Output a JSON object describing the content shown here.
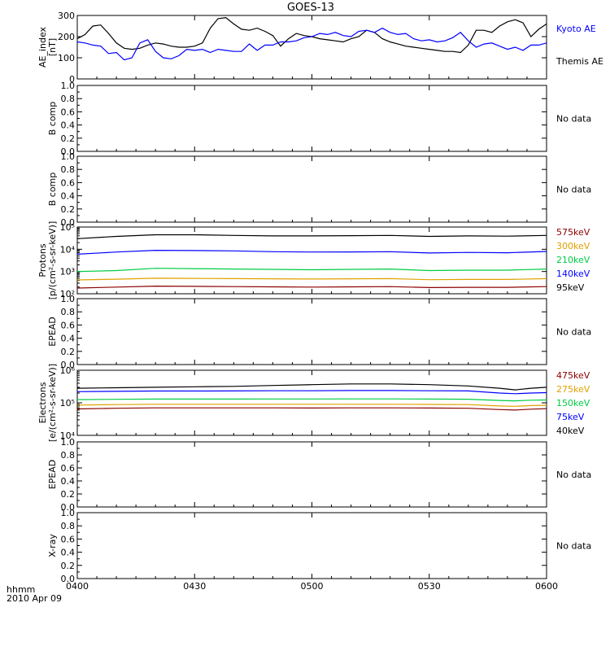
{
  "title": "GOES-13",
  "footer": {
    "line1": "hhmm",
    "line2": "2010 Apr 09"
  },
  "x_ticks": [
    "0400",
    "0430",
    "0500",
    "0530",
    "0600"
  ],
  "chart_data": [
    {
      "type": "line",
      "panel": "ae",
      "ylabel": "AE_index",
      "ylabel2": "[nT]",
      "ylim": [
        0,
        300
      ],
      "yticks": [
        0,
        100,
        200,
        300
      ],
      "x_range_minutes": [
        0,
        120
      ],
      "legend": [
        {
          "text": "Kyoto AE",
          "color": "#0000ff"
        },
        {
          "text": "Themis AE",
          "color": "#000000"
        }
      ],
      "series": [
        {
          "name": "Themis AE",
          "color": "#000000",
          "x": [
            0,
            2,
            4,
            6,
            8,
            10,
            12,
            14,
            16,
            18,
            20,
            22,
            24,
            26,
            28,
            30,
            32,
            34,
            36,
            38,
            40,
            42,
            44,
            46,
            48,
            50,
            52,
            54,
            56,
            58,
            60,
            62,
            64,
            66,
            68,
            70,
            72,
            74,
            76,
            78,
            80,
            82,
            84,
            86,
            88,
            90,
            92,
            94,
            96,
            98,
            100,
            102,
            104,
            106,
            108,
            110,
            112,
            114,
            116,
            118,
            120
          ],
          "values": [
            190,
            210,
            250,
            255,
            215,
            170,
            145,
            140,
            145,
            160,
            170,
            165,
            155,
            150,
            150,
            155,
            170,
            240,
            285,
            290,
            260,
            235,
            230,
            240,
            225,
            205,
            155,
            190,
            215,
            205,
            200,
            190,
            185,
            180,
            175,
            190,
            200,
            230,
            220,
            190,
            175,
            165,
            155,
            150,
            145,
            140,
            135,
            130,
            130,
            125,
            160,
            230,
            230,
            220,
            250,
            270,
            280,
            265,
            200,
            235,
            260
          ]
        },
        {
          "name": "Kyoto AE",
          "color": "#0000ff",
          "x": [
            0,
            2,
            4,
            6,
            8,
            10,
            12,
            14,
            16,
            18,
            20,
            22,
            24,
            26,
            28,
            30,
            32,
            34,
            36,
            38,
            40,
            42,
            44,
            46,
            48,
            50,
            52,
            54,
            56,
            58,
            60,
            62,
            64,
            66,
            68,
            70,
            72,
            74,
            76,
            78,
            80,
            82,
            84,
            86,
            88,
            90,
            92,
            94,
            96,
            98,
            100,
            102,
            104,
            106,
            108,
            110,
            112,
            114,
            116,
            118,
            120
          ],
          "values": [
            175,
            170,
            160,
            155,
            120,
            125,
            90,
            100,
            170,
            185,
            130,
            100,
            95,
            110,
            140,
            135,
            140,
            125,
            140,
            135,
            130,
            130,
            165,
            135,
            160,
            160,
            175,
            175,
            180,
            195,
            200,
            215,
            210,
            220,
            205,
            200,
            225,
            230,
            220,
            240,
            220,
            210,
            215,
            190,
            180,
            185,
            175,
            180,
            195,
            220,
            180,
            150,
            165,
            170,
            155,
            140,
            150,
            135,
            160,
            160,
            170
          ]
        }
      ]
    },
    {
      "type": "line",
      "panel": "empty",
      "ylabel": "B comp",
      "ylim": [
        0,
        1
      ],
      "yticks": [
        "0.0",
        "0.2",
        "0.4",
        "0.6",
        "0.8",
        "1.0"
      ],
      "note": "No data"
    },
    {
      "type": "line",
      "panel": "empty",
      "ylabel": "B comp",
      "ylim": [
        0,
        1
      ],
      "yticks": [
        "0.0",
        "0.2",
        "0.4",
        "0.6",
        "0.8",
        "1.0"
      ],
      "note": "No data"
    },
    {
      "type": "line",
      "panel": "protons",
      "ylabel": "Protons",
      "ylabel2": "[p/(cm²-s-sr-keV)]",
      "scale": "log",
      "ylim": [
        100,
        100000
      ],
      "yticks": [
        100,
        1000,
        10000,
        100000
      ],
      "ytick_labels": [
        "10²",
        "10³",
        "10⁴",
        "10⁵"
      ],
      "x_range_minutes": [
        0,
        120
      ],
      "legend": [
        {
          "text": "575keV",
          "color": "#8b0000"
        },
        {
          "text": "300keV",
          "color": "#e0a000"
        },
        {
          "text": "210keV",
          "color": "#00cc44"
        },
        {
          "text": "140keV",
          "color": "#0000ff"
        },
        {
          "text": "95keV",
          "color": "#000000"
        }
      ],
      "series": [
        {
          "name": "95keV",
          "color": "#000000",
          "x": [
            0,
            10,
            20,
            30,
            40,
            50,
            60,
            70,
            80,
            90,
            100,
            110,
            120
          ],
          "values": [
            30000,
            38000,
            45000,
            45000,
            42000,
            40000,
            40000,
            41000,
            42000,
            38000,
            40000,
            39000,
            42000
          ]
        },
        {
          "name": "140keV",
          "color": "#0000ff",
          "x": [
            0,
            10,
            20,
            30,
            40,
            50,
            60,
            70,
            80,
            90,
            100,
            110,
            120
          ],
          "values": [
            6000,
            7500,
            9000,
            8800,
            8500,
            7800,
            7500,
            7600,
            7800,
            6800,
            7200,
            7000,
            8000
          ]
        },
        {
          "name": "210keV",
          "color": "#00cc44",
          "x": [
            0,
            10,
            20,
            30,
            40,
            50,
            60,
            70,
            80,
            90,
            100,
            110,
            120
          ],
          "values": [
            1000,
            1100,
            1400,
            1350,
            1300,
            1250,
            1200,
            1250,
            1300,
            1100,
            1150,
            1150,
            1300
          ]
        },
        {
          "name": "300keV",
          "color": "#e0a000",
          "x": [
            0,
            10,
            20,
            30,
            40,
            50,
            60,
            70,
            80,
            90,
            100,
            110,
            120
          ],
          "values": [
            420,
            450,
            500,
            490,
            480,
            470,
            460,
            470,
            480,
            430,
            440,
            440,
            480
          ]
        },
        {
          "name": "575keV",
          "color": "#8b0000",
          "x": [
            0,
            10,
            20,
            30,
            40,
            50,
            60,
            70,
            80,
            90,
            100,
            110,
            120
          ],
          "values": [
            180,
            200,
            220,
            215,
            210,
            205,
            200,
            205,
            210,
            190,
            195,
            195,
            210
          ]
        }
      ]
    },
    {
      "type": "line",
      "panel": "empty",
      "ylabel": "EPEAD",
      "ylim": [
        0,
        1
      ],
      "yticks": [
        "0.0",
        "0.2",
        "0.4",
        "0.6",
        "0.8",
        "1.0"
      ],
      "note": "No data"
    },
    {
      "type": "line",
      "panel": "electrons",
      "ylabel": "Electrons",
      "ylabel2": "[e/(cm²-s-sr-keV)]",
      "scale": "log",
      "ylim": [
        10000,
        1000000
      ],
      "yticks": [
        10000,
        100000,
        1000000
      ],
      "ytick_labels": [
        "10⁴",
        "10⁵",
        "10⁶"
      ],
      "x_range_minutes": [
        0,
        120
      ],
      "legend": [
        {
          "text": "475keV",
          "color": "#8b0000"
        },
        {
          "text": "275keV",
          "color": "#e0a000"
        },
        {
          "text": "150keV",
          "color": "#00cc44"
        },
        {
          "text": "75keV",
          "color": "#0000ff"
        },
        {
          "text": "40keV",
          "color": "#000000"
        }
      ],
      "series": [
        {
          "name": "40keV",
          "color": "#000000",
          "x": [
            0,
            10,
            20,
            30,
            40,
            50,
            60,
            70,
            80,
            90,
            100,
            108,
            112,
            116,
            120
          ],
          "values": [
            280000,
            290000,
            300000,
            310000,
            320000,
            340000,
            360000,
            380000,
            380000,
            360000,
            330000,
            280000,
            250000,
            280000,
            300000
          ]
        },
        {
          "name": "75keV",
          "color": "#0000ff",
          "x": [
            0,
            10,
            20,
            30,
            40,
            50,
            60,
            70,
            80,
            90,
            100,
            108,
            112,
            116,
            120
          ],
          "values": [
            220000,
            225000,
            230000,
            230000,
            232000,
            235000,
            235000,
            238000,
            238000,
            235000,
            232000,
            200000,
            190000,
            200000,
            205000
          ]
        },
        {
          "name": "150keV",
          "color": "#00cc44",
          "x": [
            0,
            10,
            20,
            30,
            40,
            50,
            60,
            70,
            80,
            90,
            100,
            108,
            112,
            116,
            120
          ],
          "values": [
            125000,
            128000,
            130000,
            130000,
            130000,
            131000,
            131000,
            132000,
            132000,
            130000,
            129000,
            118000,
            115000,
            120000,
            122000
          ]
        },
        {
          "name": "275keV",
          "color": "#e0a000",
          "x": [
            0,
            10,
            20,
            30,
            40,
            50,
            60,
            70,
            80,
            90,
            100,
            108,
            112,
            116,
            120
          ],
          "values": [
            85000,
            88000,
            90000,
            90000,
            90000,
            90000,
            90000,
            90000,
            90000,
            89000,
            88000,
            80000,
            78000,
            82000,
            84000
          ]
        },
        {
          "name": "475keV",
          "color": "#8b0000",
          "x": [
            0,
            10,
            20,
            30,
            40,
            50,
            60,
            70,
            80,
            90,
            100,
            108,
            112,
            116,
            120
          ],
          "values": [
            65000,
            68000,
            70000,
            70000,
            70000,
            70000,
            69000,
            70000,
            70000,
            69000,
            68000,
            62000,
            60000,
            64000,
            66000
          ]
        }
      ]
    },
    {
      "type": "line",
      "panel": "empty",
      "ylabel": "EPEAD",
      "ylim": [
        0,
        1
      ],
      "yticks": [
        "0.0",
        "0.2",
        "0.4",
        "0.6",
        "0.8",
        "1.0"
      ],
      "note": "No data"
    },
    {
      "type": "line",
      "panel": "empty",
      "ylabel": "X-ray",
      "ylim": [
        0,
        1
      ],
      "yticks": [
        "0.0",
        "0.2",
        "0.4",
        "0.6",
        "0.8",
        "1.0"
      ],
      "note": "No data"
    }
  ]
}
